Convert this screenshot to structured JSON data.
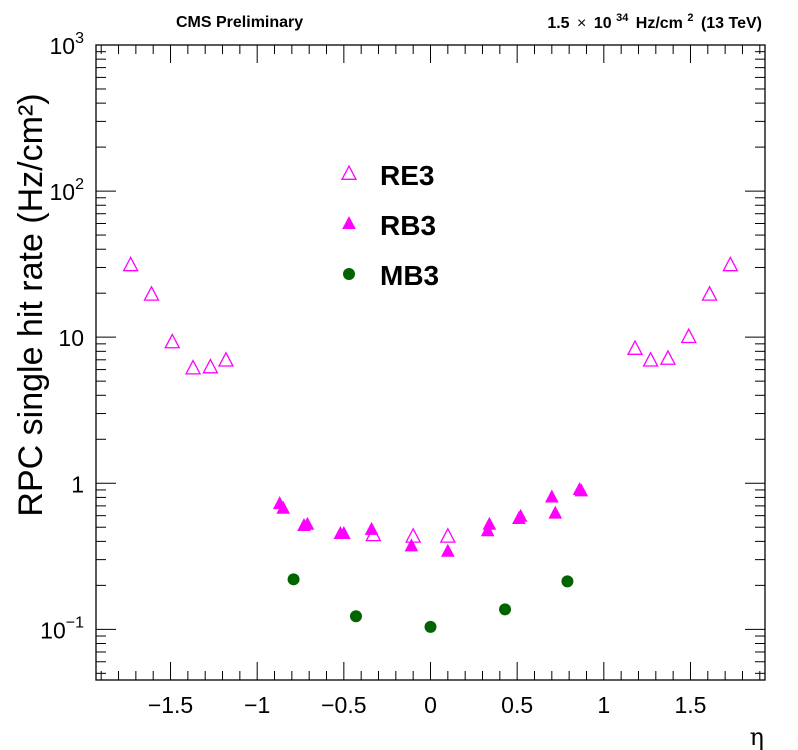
{
  "header": {
    "left": "CMS Preliminary",
    "right_base": "1.5",
    "right_times": "×",
    "right_ten": "10",
    "right_exp": "34",
    "right_unit": "Hz/cm",
    "right_unit_exp": "2",
    "right_energy": "(13 TeV)"
  },
  "colors": {
    "magenta": "#ff00ff",
    "green": "#006400",
    "axis": "#000000"
  },
  "chart_data": {
    "type": "scatter",
    "title": "",
    "xlabel": "η",
    "ylabel": "RPC single hit rate (Hz/cm²)",
    "y_scale": "log",
    "xlim": [
      -1.93,
      1.93
    ],
    "ylim": [
      0.045,
      1000
    ],
    "x_ticks": [
      {
        "value": -1.5,
        "label": "−1.5"
      },
      {
        "value": -1,
        "label": "−1"
      },
      {
        "value": -0.5,
        "label": "−0.5"
      },
      {
        "value": 0,
        "label": "0"
      },
      {
        "value": 0.5,
        "label": "0.5"
      },
      {
        "value": 1,
        "label": "1"
      },
      {
        "value": 1.5,
        "label": "1.5"
      }
    ],
    "y_ticks": [
      {
        "value": 0.1,
        "base": "10",
        "exp": "−1"
      },
      {
        "value": 1,
        "base": "1",
        "exp": ""
      },
      {
        "value": 10,
        "base": "10",
        "exp": ""
      },
      {
        "value": 100,
        "base": "10",
        "exp": "2"
      },
      {
        "value": 1000,
        "base": "10",
        "exp": "3"
      }
    ],
    "legend_position": "top-center",
    "series": [
      {
        "name": "RE3",
        "marker": "open-triangle",
        "color": "#ff00ff",
        "points": [
          {
            "x": -1.73,
            "y": 31
          },
          {
            "x": -1.61,
            "y": 19.5
          },
          {
            "x": -1.49,
            "y": 9.2
          },
          {
            "x": -1.37,
            "y": 6.1
          },
          {
            "x": -1.27,
            "y": 6.2
          },
          {
            "x": -1.18,
            "y": 6.9
          },
          {
            "x": 1.18,
            "y": 8.3
          },
          {
            "x": 1.27,
            "y": 6.9
          },
          {
            "x": 1.37,
            "y": 7.1
          },
          {
            "x": 1.49,
            "y": 10
          },
          {
            "x": 1.61,
            "y": 19.5
          },
          {
            "x": 1.73,
            "y": 31
          },
          {
            "x": -0.33,
            "y": 0.44
          },
          {
            "x": -0.1,
            "y": 0.43
          },
          {
            "x": 0.1,
            "y": 0.43
          }
        ]
      },
      {
        "name": "RB3",
        "marker": "filled-triangle",
        "color": "#ff00ff",
        "points": [
          {
            "x": -0.87,
            "y": 0.72
          },
          {
            "x": -0.85,
            "y": 0.67
          },
          {
            "x": -0.73,
            "y": 0.51
          },
          {
            "x": -0.71,
            "y": 0.52
          },
          {
            "x": -0.52,
            "y": 0.45
          },
          {
            "x": -0.5,
            "y": 0.45
          },
          {
            "x": -0.34,
            "y": 0.48
          },
          {
            "x": -0.11,
            "y": 0.37
          },
          {
            "x": 0.1,
            "y": 0.34
          },
          {
            "x": 0.33,
            "y": 0.47
          },
          {
            "x": 0.34,
            "y": 0.52
          },
          {
            "x": 0.51,
            "y": 0.57
          },
          {
            "x": 0.52,
            "y": 0.59
          },
          {
            "x": 0.7,
            "y": 0.8
          },
          {
            "x": 0.72,
            "y": 0.62
          },
          {
            "x": 0.86,
            "y": 0.9
          },
          {
            "x": 0.87,
            "y": 0.88
          }
        ]
      },
      {
        "name": "MB3",
        "marker": "filled-circle",
        "color": "#006400",
        "points": [
          {
            "x": -0.79,
            "y": 0.22
          },
          {
            "x": -0.43,
            "y": 0.123
          },
          {
            "x": 0.0,
            "y": 0.104
          },
          {
            "x": 0.43,
            "y": 0.137
          },
          {
            "x": 0.79,
            "y": 0.213
          }
        ]
      }
    ]
  }
}
